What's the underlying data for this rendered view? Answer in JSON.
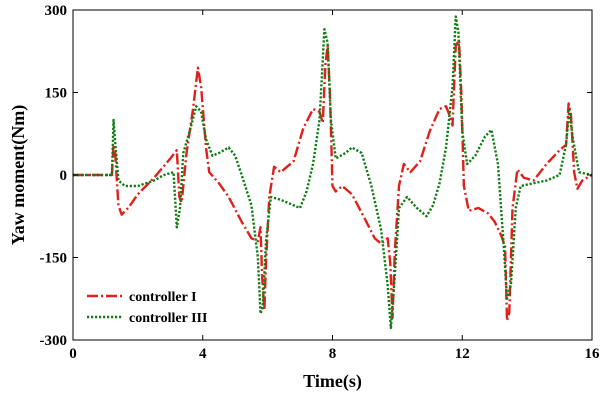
{
  "chart_data": {
    "type": "line",
    "title": "",
    "xlabel": "Time(s)",
    "ylabel": "Yaw moment(Nm)",
    "xlim": [
      0,
      16
    ],
    "ylim": [
      -300,
      300
    ],
    "xticks": [
      0,
      4,
      8,
      12,
      16
    ],
    "yticks": [
      -300,
      -150,
      0,
      150,
      300
    ],
    "xtick_labels": [
      "0",
      "4",
      "8",
      "12",
      "16"
    ],
    "ytick_labels": [
      "-300",
      "-150",
      "0",
      "150",
      "300"
    ],
    "grid": false,
    "legend_position": "bottom-left",
    "series": [
      {
        "name": "controller I",
        "color": "#e0201b",
        "style": "dash-dot",
        "points": [
          [
            0,
            0
          ],
          [
            1.2,
            0
          ],
          [
            1.25,
            55
          ],
          [
            1.3,
            40
          ],
          [
            1.4,
            -55
          ],
          [
            1.5,
            -72
          ],
          [
            1.7,
            -60
          ],
          [
            2,
            -35
          ],
          [
            2.5,
            -5
          ],
          [
            3,
            30
          ],
          [
            3.2,
            45
          ],
          [
            3.28,
            -40
          ],
          [
            3.35,
            -50
          ],
          [
            3.5,
            40
          ],
          [
            3.7,
            120
          ],
          [
            3.85,
            195
          ],
          [
            3.95,
            160
          ],
          [
            4.1,
            50
          ],
          [
            4.2,
            5
          ],
          [
            4.5,
            -15
          ],
          [
            4.8,
            -40
          ],
          [
            5.2,
            -85
          ],
          [
            5.5,
            -115
          ],
          [
            5.7,
            -120
          ],
          [
            5.78,
            -95
          ],
          [
            5.83,
            -185
          ],
          [
            5.9,
            -245
          ],
          [
            5.95,
            -160
          ],
          [
            6.05,
            -40
          ],
          [
            6.2,
            15
          ],
          [
            6.4,
            5
          ],
          [
            6.8,
            25
          ],
          [
            7.1,
            85
          ],
          [
            7.4,
            120
          ],
          [
            7.6,
            115
          ],
          [
            7.7,
            95
          ],
          [
            7.78,
            200
          ],
          [
            7.85,
            235
          ],
          [
            7.92,
            150
          ],
          [
            8.0,
            -20
          ],
          [
            8.1,
            -30
          ],
          [
            8.3,
            -20
          ],
          [
            8.6,
            -35
          ],
          [
            9,
            -80
          ],
          [
            9.3,
            -115
          ],
          [
            9.5,
            -125
          ],
          [
            9.7,
            -115
          ],
          [
            9.78,
            -160
          ],
          [
            9.85,
            -260
          ],
          [
            9.92,
            -140
          ],
          [
            10.05,
            -20
          ],
          [
            10.2,
            20
          ],
          [
            10.4,
            5
          ],
          [
            10.7,
            25
          ],
          [
            11,
            80
          ],
          [
            11.3,
            120
          ],
          [
            11.5,
            125
          ],
          [
            11.6,
            110
          ],
          [
            11.7,
            90
          ],
          [
            11.8,
            235
          ],
          [
            11.9,
            245
          ],
          [
            11.97,
            150
          ],
          [
            12.05,
            -20
          ],
          [
            12.2,
            -65
          ],
          [
            12.5,
            -60
          ],
          [
            12.8,
            -70
          ],
          [
            13,
            -85
          ],
          [
            13.2,
            -110
          ],
          [
            13.32,
            -130
          ],
          [
            13.38,
            -265
          ],
          [
            13.45,
            -250
          ],
          [
            13.55,
            -60
          ],
          [
            13.7,
            10
          ],
          [
            13.9,
            -5
          ],
          [
            14.2,
            -10
          ],
          [
            14.6,
            20
          ],
          [
            15,
            45
          ],
          [
            15.2,
            55
          ],
          [
            15.28,
            130
          ],
          [
            15.35,
            110
          ],
          [
            15.45,
            5
          ],
          [
            15.55,
            -25
          ],
          [
            15.7,
            -10
          ],
          [
            16,
            0
          ]
        ]
      },
      {
        "name": "controller III",
        "color": "#0f7d12",
        "style": "dotted",
        "points": [
          [
            0,
            0
          ],
          [
            1.2,
            0
          ],
          [
            1.25,
            100
          ],
          [
            1.3,
            60
          ],
          [
            1.4,
            -10
          ],
          [
            1.6,
            -20
          ],
          [
            2,
            -20
          ],
          [
            2.5,
            -10
          ],
          [
            2.8,
            0
          ],
          [
            3.1,
            5
          ],
          [
            3.2,
            -95
          ],
          [
            3.3,
            -60
          ],
          [
            3.4,
            40
          ],
          [
            3.6,
            80
          ],
          [
            3.8,
            125
          ],
          [
            3.95,
            115
          ],
          [
            4.1,
            65
          ],
          [
            4.3,
            35
          ],
          [
            4.5,
            40
          ],
          [
            4.8,
            50
          ],
          [
            5,
            35
          ],
          [
            5.2,
            0
          ],
          [
            5.5,
            -55
          ],
          [
            5.7,
            -150
          ],
          [
            5.78,
            -252
          ],
          [
            5.85,
            -240
          ],
          [
            5.95,
            -120
          ],
          [
            6.1,
            -40
          ],
          [
            6.4,
            -45
          ],
          [
            6.8,
            -55
          ],
          [
            7,
            -60
          ],
          [
            7.2,
            -30
          ],
          [
            7.4,
            20
          ],
          [
            7.6,
            100
          ],
          [
            7.75,
            265
          ],
          [
            7.85,
            240
          ],
          [
            7.95,
            100
          ],
          [
            8.1,
            30
          ],
          [
            8.4,
            40
          ],
          [
            8.6,
            50
          ],
          [
            8.9,
            40
          ],
          [
            9.2,
            -20
          ],
          [
            9.5,
            -100
          ],
          [
            9.7,
            -200
          ],
          [
            9.8,
            -278
          ],
          [
            9.9,
            -200
          ],
          [
            10.05,
            -60
          ],
          [
            10.3,
            -40
          ],
          [
            10.6,
            -60
          ],
          [
            10.9,
            -75
          ],
          [
            11.1,
            -55
          ],
          [
            11.3,
            -15
          ],
          [
            11.5,
            50
          ],
          [
            11.7,
            160
          ],
          [
            11.8,
            288
          ],
          [
            11.88,
            260
          ],
          [
            12,
            80
          ],
          [
            12.15,
            20
          ],
          [
            12.4,
            35
          ],
          [
            12.7,
            70
          ],
          [
            12.9,
            82
          ],
          [
            13.1,
            20
          ],
          [
            13.28,
            -130
          ],
          [
            13.38,
            -225
          ],
          [
            13.5,
            -200
          ],
          [
            13.65,
            -60
          ],
          [
            13.8,
            -20
          ],
          [
            14.2,
            -15
          ],
          [
            14.6,
            -10
          ],
          [
            15,
            0
          ],
          [
            15.2,
            55
          ],
          [
            15.3,
            118
          ],
          [
            15.4,
            70
          ],
          [
            15.6,
            5
          ],
          [
            16,
            0
          ]
        ]
      }
    ]
  }
}
